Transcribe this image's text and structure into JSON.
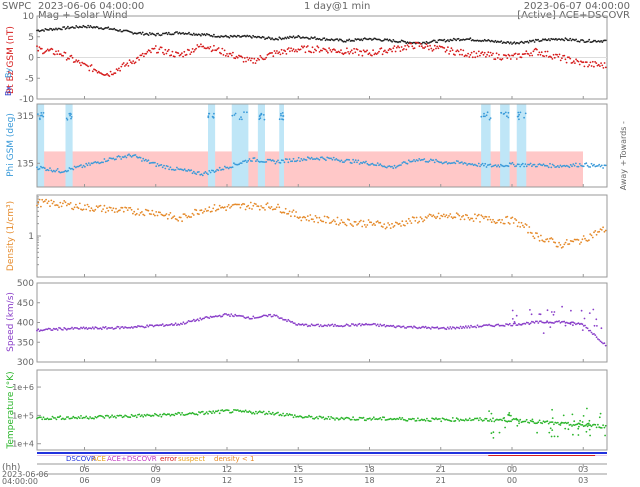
{
  "header": {
    "org": "SWPC",
    "start": "2023-06-06 04:00:00",
    "subtitle": "Mag + Solar Wind",
    "span": "1 day@1 min",
    "end": "2023-06-07 04:00:00",
    "source": "[Active] ACE+DSCOVR"
  },
  "axis_labels": {
    "mag": "Bt  Bz GSM (nT)",
    "bx": "Bx",
    "by": "By",
    "phi": "Phi GSM (deg)",
    "towards": "Towards -",
    "away": "Away +",
    "density": "Density (1/cm³)",
    "speed": "Speed (km/s)",
    "temperature": "Temperature (°K)"
  },
  "legend": {
    "dscovr": "DSCOVR",
    "ace": "ACE",
    "both": "ACE+DSCOVR",
    "error": "error",
    "suspect": "suspect",
    "density": "density < 1"
  },
  "time_axis": {
    "unit_label": "(hh)",
    "start_label": "2023-06-06",
    "start_time": "04:00:00",
    "ticks": [
      "06",
      "09",
      "12",
      "15",
      "18",
      "21",
      "00",
      "03"
    ]
  },
  "colors": {
    "bt": "#222222",
    "bz": "#d61c1c",
    "phi": "#3a9ad9",
    "density": "#e58a2a",
    "speed": "#8a3fc9",
    "temperature": "#2bb52b",
    "towards_band": "#bfe6f7",
    "away_band": "#ffc8c8",
    "axis": "#999999",
    "dscovr": "#2233dd",
    "ace": "#e8a31f"
  },
  "chart_data": [
    {
      "type": "line",
      "panel": "mag",
      "ylabel": "Bt  Bz GSM (nT)",
      "ylim": [
        -10,
        10
      ],
      "yticks": [
        -10,
        -5,
        0,
        5,
        10
      ],
      "x_hours": [
        0,
        1,
        2,
        3,
        4,
        5,
        6,
        7,
        8,
        9,
        10,
        11,
        12,
        13,
        14,
        15,
        16,
        17,
        18,
        19,
        20,
        21,
        22,
        23,
        24
      ],
      "series": [
        {
          "name": "Bt",
          "values": [
            6.5,
            7,
            7.5,
            7,
            6,
            5.5,
            6,
            5.5,
            5,
            5,
            4.5,
            5,
            4.5,
            4,
            4.5,
            4,
            3.5,
            4,
            4.5,
            4,
            3.5,
            4,
            4.5,
            4,
            4
          ]
        },
        {
          "name": "Bz",
          "values": [
            2,
            1,
            -2,
            -4,
            -1,
            2,
            0.5,
            3,
            1,
            -1,
            1,
            2,
            2,
            1.5,
            1,
            2,
            3,
            2,
            1,
            0.5,
            0,
            1.5,
            0,
            -1.5,
            -2
          ]
        }
      ]
    },
    {
      "type": "scatter",
      "panel": "phi",
      "ylabel": "Phi GSM (deg)",
      "ylim": [
        45,
        360
      ],
      "yticks": [
        135,
        315
      ],
      "x_hours": [
        0,
        1,
        2,
        3,
        4,
        5,
        6,
        7,
        8,
        9,
        10,
        11,
        12,
        13,
        14,
        15,
        16,
        17,
        18,
        19,
        20,
        21,
        22,
        23,
        24
      ],
      "values": [
        120,
        105,
        125,
        150,
        165,
        130,
        110,
        95,
        120,
        150,
        140,
        150,
        155,
        145,
        135,
        120,
        150,
        140,
        135,
        125,
        130,
        128,
        125,
        130,
        120
      ],
      "towards_intervals_h": [
        [
          0,
          0.3
        ],
        [
          1.2,
          1.5
        ],
        [
          7.2,
          7.5
        ],
        [
          8.2,
          8.9
        ],
        [
          9.3,
          9.6
        ],
        [
          10.2,
          10.4
        ],
        [
          18.7,
          19.1
        ],
        [
          19.5,
          19.9
        ],
        [
          20.2,
          20.6
        ]
      ]
    },
    {
      "type": "scatter",
      "panel": "density",
      "ylabel": "Density (1/cm³)",
      "ylim": [
        0.1,
        10
      ],
      "log": true,
      "ytick_labels": [
        "1"
      ],
      "x_hours": [
        0,
        1,
        2,
        3,
        4,
        5,
        6,
        7,
        8,
        9,
        10,
        11,
        12,
        13,
        14,
        15,
        16,
        17,
        18,
        19,
        20,
        21,
        22,
        23,
        24
      ],
      "values": [
        6.5,
        6,
        5,
        4.5,
        4,
        3.8,
        2.5,
        4.5,
        5,
        5.5,
        5.2,
        3,
        2.5,
        2.2,
        2,
        1.8,
        2.5,
        3,
        3,
        2.5,
        2.4,
        1,
        0.6,
        0.8,
        1.5
      ]
    },
    {
      "type": "scatter",
      "panel": "speed",
      "ylabel": "Speed (km/s)",
      "ylim": [
        300,
        500
      ],
      "yticks": [
        300,
        350,
        400,
        450,
        500
      ],
      "x_hours": [
        0,
        1,
        2,
        3,
        4,
        5,
        6,
        7,
        8,
        9,
        10,
        11,
        12,
        13,
        14,
        15,
        16,
        17,
        18,
        19,
        20,
        21,
        22,
        23,
        24
      ],
      "values": [
        380,
        384,
        385,
        386,
        388,
        392,
        396,
        410,
        420,
        412,
        418,
        394,
        392,
        393,
        395,
        390,
        388,
        385,
        388,
        392,
        395,
        400,
        402,
        395,
        340
      ]
    },
    {
      "type": "scatter",
      "panel": "temperature",
      "ylabel": "Temperature (°K)",
      "ylim": [
        6000,
        4000000
      ],
      "log": true,
      "ytick_labels": [
        "1e+4",
        "1e+5",
        "1e+6"
      ],
      "x_hours": [
        0,
        1,
        2,
        3,
        4,
        5,
        6,
        7,
        8,
        9,
        10,
        11,
        12,
        13,
        14,
        15,
        16,
        17,
        18,
        19,
        20,
        21,
        22,
        23,
        24
      ],
      "values": [
        80000,
        82000,
        85000,
        90000,
        95000,
        100000,
        110000,
        120000,
        140000,
        130000,
        120000,
        90000,
        80000,
        78000,
        76000,
        75000,
        72000,
        70000,
        72000,
        70000,
        68000,
        60000,
        50000,
        45000,
        40000
      ]
    }
  ]
}
